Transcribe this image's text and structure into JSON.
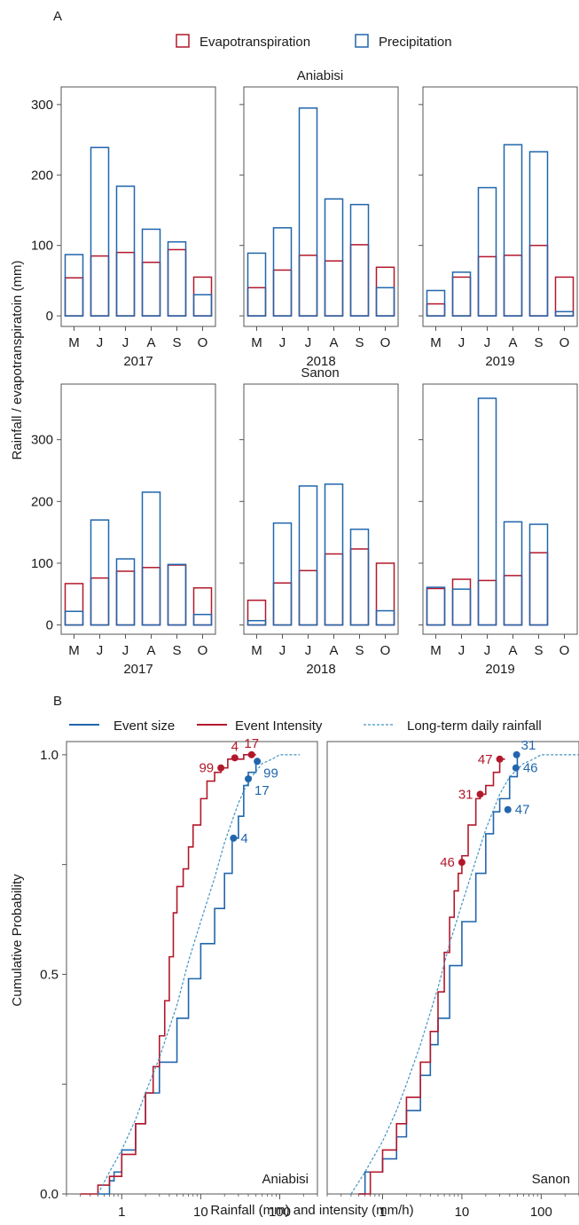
{
  "figure": {
    "panel_a_label": "A",
    "panel_b_label": "B",
    "panel_a_ylabel": "Rainfall / evapotranspiratoin (mm)",
    "panel_b_xlabel": "Rainfall (mm) and intensity (mm/h)",
    "panel_b_ylabel": "Cumulative Probability"
  },
  "legend_a": {
    "evapo": "Evapotranspiration",
    "precip": "Precipitation"
  },
  "legend_b": {
    "event_size": "Event size",
    "event_intensity": "Event Intensity",
    "long_term": "Long-term daily rainfall"
  },
  "colors": {
    "evapotranspiration": "#b2182b",
    "precipitation": "#2166ac",
    "event_size": "#2166ac",
    "event_intensity": "#b2182b",
    "long_term": "#4393c3"
  },
  "chart_data": [
    {
      "type": "bar",
      "site": "Aniabisi",
      "row_title": "Aniabisi",
      "ylim": [
        -15,
        325
      ],
      "yticks": [
        0,
        100,
        200,
        300
      ],
      "months": [
        "M",
        "J",
        "J",
        "A",
        "S",
        "O"
      ],
      "panels": [
        {
          "year": "2017",
          "evapotranspiration": [
            54,
            85,
            90,
            76,
            94,
            55
          ],
          "precipitation": [
            87,
            239,
            184,
            123,
            105,
            30
          ]
        },
        {
          "year": "2018",
          "evapotranspiration": [
            40,
            65,
            86,
            78,
            101,
            69
          ],
          "precipitation": [
            89,
            125,
            295,
            166,
            158,
            40
          ]
        },
        {
          "year": "2019",
          "evapotranspiration": [
            17,
            55,
            84,
            86,
            100,
            55
          ],
          "precipitation": [
            36,
            62,
            182,
            243,
            233,
            6
          ]
        }
      ]
    },
    {
      "type": "bar",
      "site": "Sanon",
      "row_title": "Sanon",
      "ylim": [
        -15,
        390
      ],
      "yticks": [
        0,
        100,
        200,
        300
      ],
      "months": [
        "M",
        "J",
        "J",
        "A",
        "S",
        "O"
      ],
      "panels": [
        {
          "year": "2017",
          "evapotranspiration": [
            67,
            76,
            87,
            93,
            97,
            60
          ],
          "precipitation": [
            22,
            170,
            107,
            215,
            98,
            17
          ]
        },
        {
          "year": "2018",
          "evapotranspiration": [
            40,
            68,
            88,
            115,
            123,
            100
          ],
          "precipitation": [
            7,
            165,
            225,
            228,
            155,
            23
          ]
        },
        {
          "year": "2019",
          "evapotranspiration": [
            59,
            74,
            72,
            80,
            117,
            null
          ],
          "precipitation": [
            61,
            58,
            367,
            167,
            163,
            null
          ]
        }
      ]
    },
    {
      "type": "line",
      "site": "Aniabisi",
      "panel_label": "Aniabisi",
      "x_scale": "log",
      "xlim": [
        0.2,
        300
      ],
      "ylim": [
        0,
        1.03
      ],
      "xticks": [
        1,
        10,
        100
      ],
      "yticks": [
        0.0,
        0.5,
        1.0
      ],
      "series": [
        {
          "key": "event_size",
          "style": "step",
          "x": [
            0.5,
            0.7,
            0.8,
            1,
            1.5,
            2,
            3,
            5,
            7,
            10,
            15,
            20,
            25,
            30,
            35,
            40,
            50
          ],
          "y": [
            0.0,
            0.03,
            0.05,
            0.1,
            0.16,
            0.23,
            0.3,
            0.4,
            0.49,
            0.57,
            0.65,
            0.73,
            0.81,
            0.86,
            0.93,
            0.96,
            0.99
          ]
        },
        {
          "key": "event_intensity",
          "style": "step",
          "x": [
            0.3,
            0.5,
            0.7,
            1,
            1.5,
            2,
            2.5,
            3,
            3.5,
            4,
            4.5,
            5,
            6,
            7,
            8,
            10,
            12,
            15,
            18,
            22,
            27,
            35,
            50
          ],
          "y": [
            0.0,
            0.02,
            0.04,
            0.09,
            0.16,
            0.23,
            0.29,
            0.36,
            0.44,
            0.54,
            0.64,
            0.7,
            0.74,
            0.79,
            0.84,
            0.9,
            0.94,
            0.96,
            0.97,
            0.99,
            0.99,
            1.0,
            1.0
          ]
        },
        {
          "key": "long_term",
          "style": "dashed",
          "x": [
            0.5,
            0.7,
            1,
            1.5,
            2,
            3,
            5,
            7,
            10,
            15,
            20,
            30,
            40,
            60,
            80,
            100,
            150,
            180
          ],
          "y": [
            0.0,
            0.05,
            0.1,
            0.17,
            0.23,
            0.31,
            0.43,
            0.53,
            0.62,
            0.72,
            0.8,
            0.89,
            0.94,
            0.98,
            0.99,
            1.0,
            1.0,
            1.0
          ]
        }
      ],
      "points": [
        {
          "series": "event_intensity",
          "label": "99",
          "x": 18,
          "y": 0.97,
          "side": "left"
        },
        {
          "series": "event_intensity",
          "label": "4",
          "x": 27,
          "y": 0.993,
          "side": "above"
        },
        {
          "series": "event_intensity",
          "label": "17",
          "x": 44,
          "y": 1.0,
          "side": "above"
        },
        {
          "series": "event_size",
          "label": "99",
          "x": 52,
          "y": 0.985,
          "side": "below-right"
        },
        {
          "series": "event_size",
          "label": "17",
          "x": 40,
          "y": 0.945,
          "side": "below-right"
        },
        {
          "series": "event_size",
          "label": "4",
          "x": 26,
          "y": 0.81,
          "side": "right"
        }
      ]
    },
    {
      "type": "line",
      "site": "Sanon",
      "panel_label": "Sanon",
      "x_scale": "log",
      "xlim": [
        0.2,
        300
      ],
      "ylim": [
        0,
        1.03
      ],
      "xticks": [
        1,
        10,
        100
      ],
      "yticks": [
        0.0,
        0.5,
        1.0
      ],
      "series": [
        {
          "key": "event_size",
          "style": "step",
          "x": [
            0.5,
            0.6,
            1,
            1.5,
            2,
            3,
            4,
            5,
            7,
            10,
            15,
            20,
            25,
            30,
            40,
            50
          ],
          "y": [
            0.0,
            0.05,
            0.08,
            0.13,
            0.19,
            0.27,
            0.34,
            0.4,
            0.52,
            0.62,
            0.73,
            0.82,
            0.87,
            0.9,
            0.95,
            1.0
          ]
        },
        {
          "key": "event_intensity",
          "style": "step",
          "x": [
            0.5,
            0.7,
            1,
            1.5,
            2,
            3,
            4,
            5,
            6,
            7,
            8,
            9,
            10,
            12,
            15,
            17,
            20,
            25,
            30,
            35
          ],
          "y": [
            0.0,
            0.05,
            0.1,
            0.16,
            0.22,
            0.3,
            0.37,
            0.46,
            0.55,
            0.63,
            0.69,
            0.73,
            0.77,
            0.84,
            0.9,
            0.91,
            0.93,
            0.96,
            0.99,
            0.99
          ]
        },
        {
          "key": "long_term",
          "style": "dashed",
          "x": [
            0.4,
            0.6,
            1,
            1.5,
            2,
            3,
            5,
            7,
            10,
            15,
            20,
            30,
            40,
            60,
            80,
            100,
            150,
            200,
            300
          ],
          "y": [
            0.0,
            0.05,
            0.12,
            0.19,
            0.25,
            0.34,
            0.47,
            0.57,
            0.66,
            0.76,
            0.83,
            0.91,
            0.95,
            0.98,
            0.99,
            1.0,
            1.0,
            1.0,
            1.0
          ]
        }
      ],
      "points": [
        {
          "series": "event_intensity",
          "label": "47",
          "x": 30,
          "y": 0.99,
          "side": "left"
        },
        {
          "series": "event_intensity",
          "label": "31",
          "x": 17,
          "y": 0.91,
          "side": "left"
        },
        {
          "series": "event_intensity",
          "label": "46",
          "x": 10,
          "y": 0.755,
          "side": "left"
        },
        {
          "series": "event_size",
          "label": "31",
          "x": 49,
          "y": 1.0,
          "side": "above-right"
        },
        {
          "series": "event_size",
          "label": "46",
          "x": 48,
          "y": 0.97,
          "side": "right"
        },
        {
          "series": "event_size",
          "label": "47",
          "x": 38,
          "y": 0.875,
          "side": "right"
        }
      ]
    }
  ]
}
